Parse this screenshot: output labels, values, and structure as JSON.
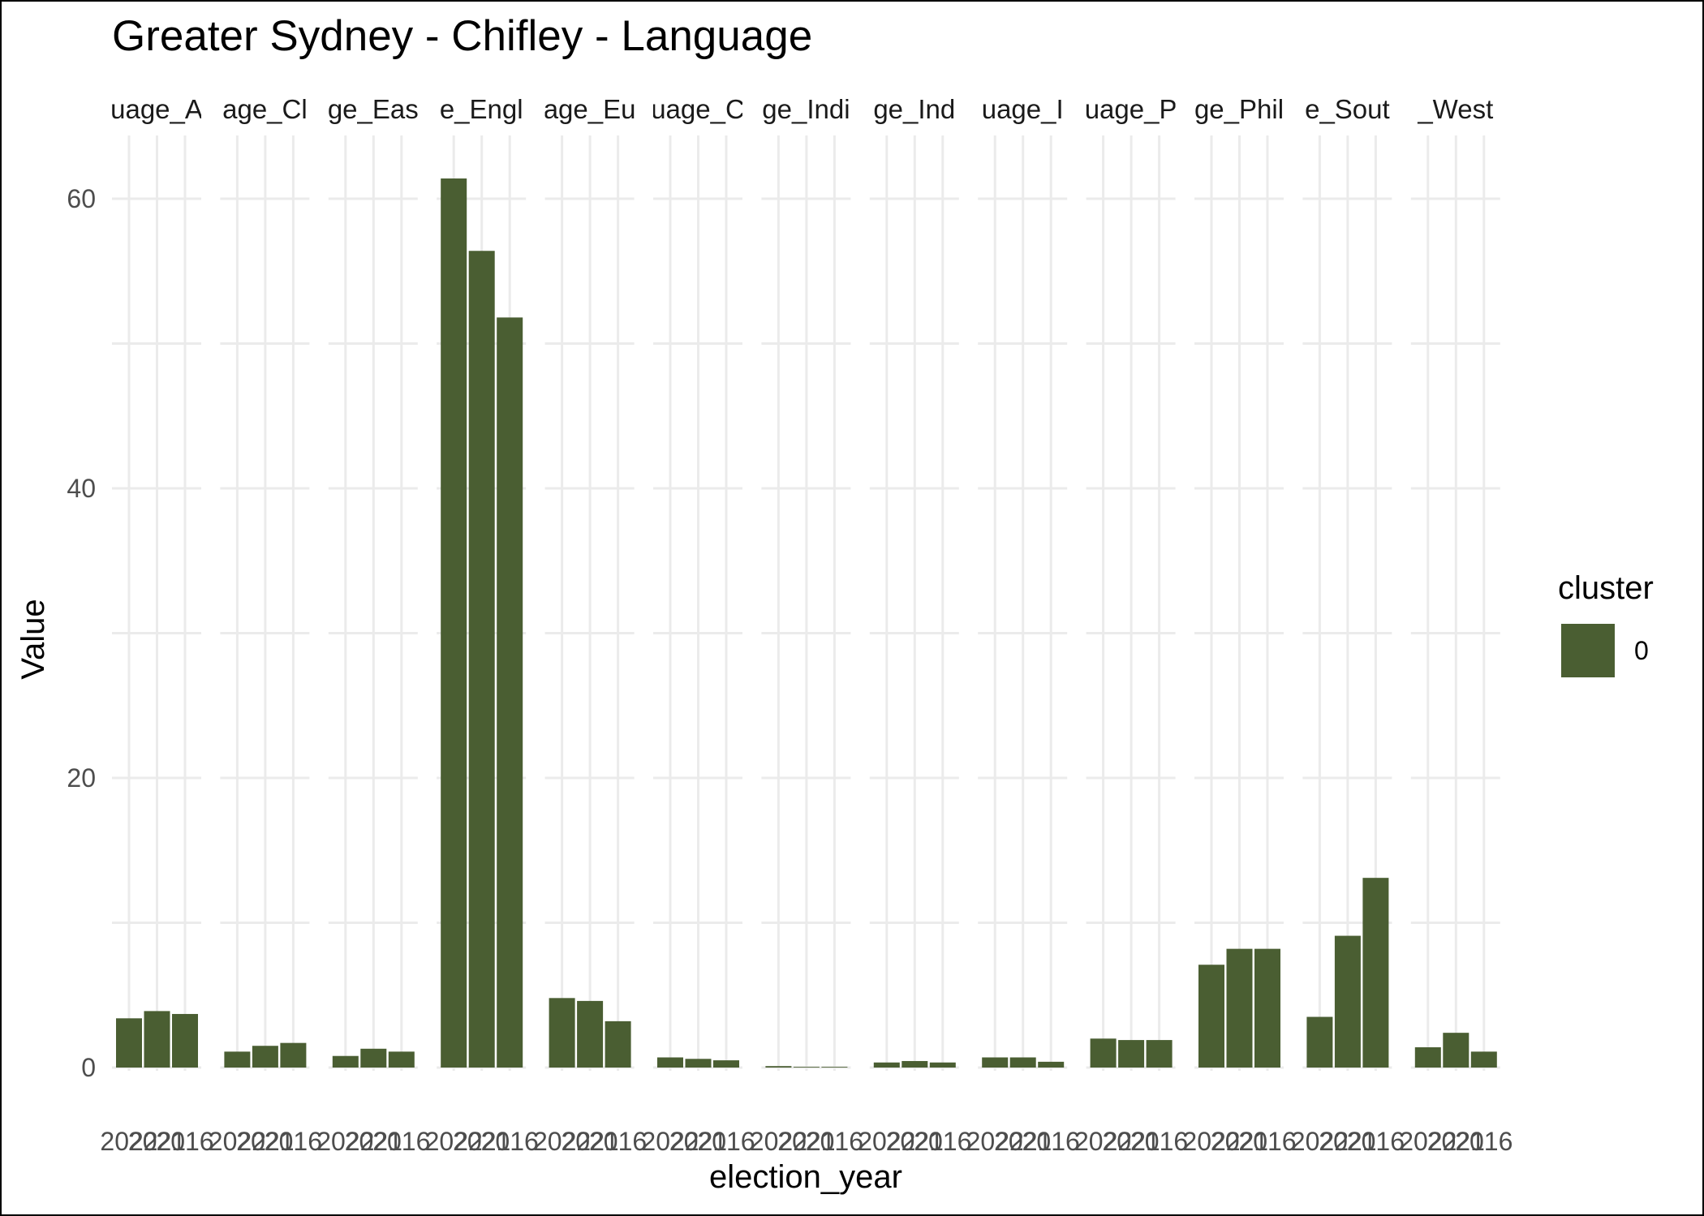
{
  "chart_data": {
    "type": "bar",
    "title": "Greater Sydney - Chifley - Language",
    "xlabel": "election_year",
    "ylabel": "Value",
    "ylim": [
      0,
      64
    ],
    "yticks": [
      0,
      20,
      40,
      60
    ],
    "grid": true,
    "legend": {
      "title": "cluster",
      "placement": "right",
      "entries": [
        {
          "label": "0",
          "color": "#4a5e32"
        }
      ]
    },
    "categories": [
      "2022",
      "2021",
      "2016"
    ],
    "category_tick_labels": [
      "2022",
      "2021",
      "2016"
    ],
    "panels": [
      {
        "label": "uage_A",
        "values": [
          3.4,
          3.9,
          3.7
        ]
      },
      {
        "label": "age_Cl",
        "values": [
          1.1,
          1.5,
          1.7
        ]
      },
      {
        "label": "ge_Eas",
        "values": [
          0.8,
          1.3,
          1.1
        ]
      },
      {
        "label": "e_Engl",
        "values": [
          61.4,
          56.4,
          51.8
        ]
      },
      {
        "label": "age_Eu",
        "values": [
          4.8,
          4.6,
          3.2
        ]
      },
      {
        "label": "uage_C",
        "values": [
          0.7,
          0.6,
          0.5
        ]
      },
      {
        "label": "ge_Indi",
        "values": [
          0.1,
          0.05,
          0.05
        ]
      },
      {
        "label": "ge_Ind",
        "values": [
          0.35,
          0.45,
          0.35
        ]
      },
      {
        "label": "uage_I",
        "values": [
          0.7,
          0.7,
          0.4
        ]
      },
      {
        "label": "uage_P",
        "values": [
          2.0,
          1.9,
          1.9
        ]
      },
      {
        "label": "ge_Phil",
        "values": [
          7.1,
          8.2,
          8.2
        ]
      },
      {
        "label": "e_Sout",
        "values": [
          3.5,
          9.1,
          13.1
        ]
      },
      {
        "label": "_West",
        "values": [
          1.4,
          2.4,
          1.1
        ]
      }
    ]
  },
  "colors": {
    "bar": "#4a5e32",
    "grid": "#ebebeb",
    "background": "#ffffff"
  }
}
